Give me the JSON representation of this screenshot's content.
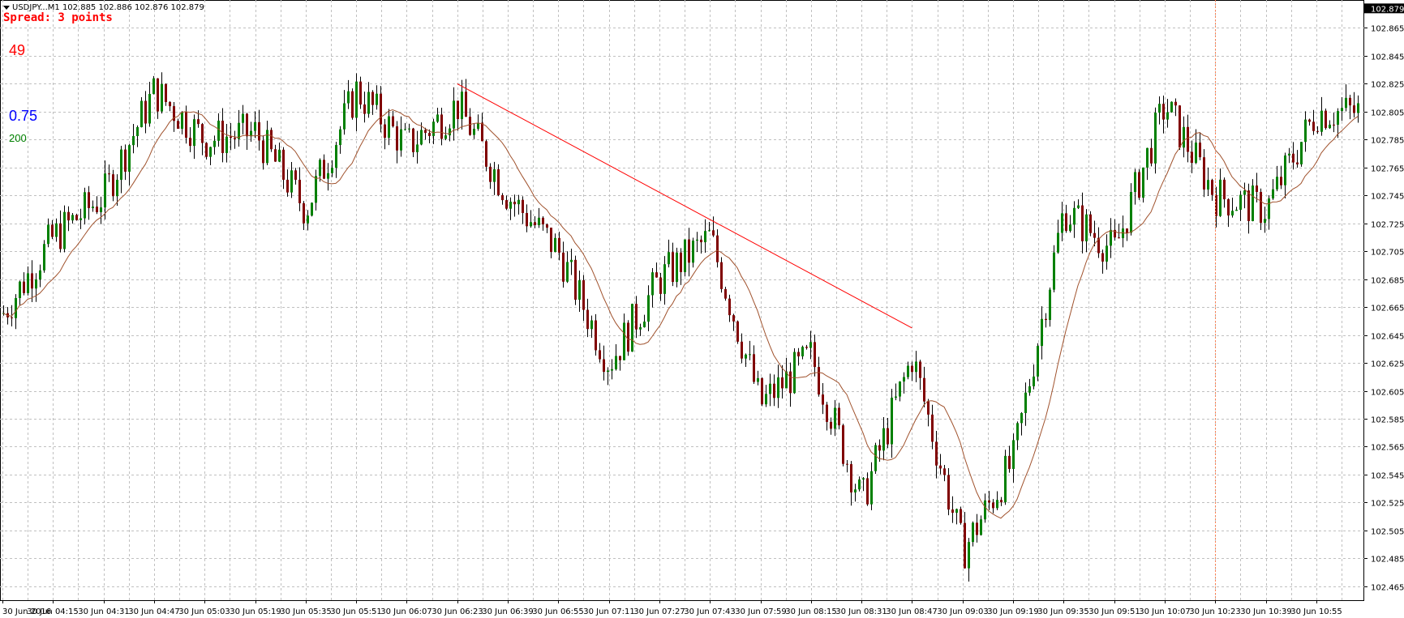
{
  "header": {
    "symbol": "USDJPY...M1",
    "ohlc": "102.885 102.886 102.876 102.879",
    "spread": "Spread: 3 points",
    "counter": "49",
    "value_blue": "0.75",
    "value_green": "200"
  },
  "colors": {
    "bull": "#008000",
    "bear": "#800000",
    "wick": "#000000",
    "ma": "#a0522d",
    "trendline": "#ff0000",
    "grid": "#c0c0c0",
    "price_label_bg": "#000000",
    "vline": "#ff7f50"
  },
  "chart_data": {
    "type": "candlestick",
    "timeframe": "M1",
    "ylim": [
      102.455,
      102.885
    ],
    "y_ticks": [
      "102.865",
      "102.845",
      "102.825",
      "102.805",
      "102.785",
      "102.765",
      "102.745",
      "102.725",
      "102.705",
      "102.685",
      "102.665",
      "102.645",
      "102.625",
      "102.605",
      "102.585",
      "102.565",
      "102.545",
      "102.525",
      "102.505",
      "102.485",
      "102.465"
    ],
    "current_price": "102.879",
    "x_ticks": [
      "30 Jun 2016",
      "30 Jun 04:15",
      "30 Jun 04:31",
      "30 Jun 04:47",
      "30 Jun 05:03",
      "30 Jun 05:19",
      "30 Jun 05:35",
      "30 Jun 05:51",
      "30 Jun 06:07",
      "30 Jun 06:23",
      "30 Jun 06:39",
      "30 Jun 06:55",
      "30 Jun 07:11",
      "30 Jun 07:27",
      "30 Jun 07:43",
      "30 Jun 07:59",
      "30 Jun 08:15",
      "30 Jun 08:31",
      "30 Jun 08:47",
      "30 Jun 09:03",
      "30 Jun 09:19",
      "30 Jun 09:35",
      "30 Jun 09:51",
      "30 Jun 10:07",
      "30 Jun 10:23",
      "30 Jun 10:39",
      "30 Jun 10:55"
    ],
    "close_path": [
      [
        "30 Jun 2016",
        102.66
      ],
      [
        "30 Jun 04:15",
        102.715
      ],
      [
        "30 Jun 04:31",
        102.745
      ],
      [
        "30 Jun 04:47",
        102.82
      ],
      [
        "30 Jun 05:03",
        102.785
      ],
      [
        "30 Jun 05:19",
        102.79
      ],
      [
        "30 Jun 05:35",
        102.735
      ],
      [
        "30 Jun 05:51",
        102.82
      ],
      [
        "30 Jun 06:07",
        102.78
      ],
      [
        "30 Jun 06:23",
        102.81
      ],
      [
        "30 Jun 06:39",
        102.745
      ],
      [
        "30 Jun 06:55",
        102.705
      ],
      [
        "30 Jun 07:11",
        102.625
      ],
      [
        "30 Jun 07:27",
        102.685
      ],
      [
        "30 Jun 07:43",
        102.715
      ],
      [
        "30 Jun 07:59",
        102.595
      ],
      [
        "30 Jun 08:15",
        102.63
      ],
      [
        "30 Jun 08:31",
        102.525
      ],
      [
        "30 Jun 08:47",
        102.63
      ],
      [
        "30 Jun 09:03",
        102.49
      ],
      [
        "30 Jun 09:19",
        102.555
      ],
      [
        "30 Jun 09:35",
        102.735
      ],
      [
        "30 Jun 09:51",
        102.705
      ],
      [
        "30 Jun 10:07",
        102.81
      ],
      [
        "30 Jun 10:23",
        102.745
      ],
      [
        "30 Jun 10:39",
        102.735
      ],
      [
        "30 Jun 10:55",
        102.805
      ]
    ],
    "trendline": {
      "from": [
        "30 Jun 06:23",
        102.825
      ],
      "to": [
        "30 Jun 08:47",
        102.65
      ]
    },
    "vline_at": "30 Jun 10:23"
  }
}
